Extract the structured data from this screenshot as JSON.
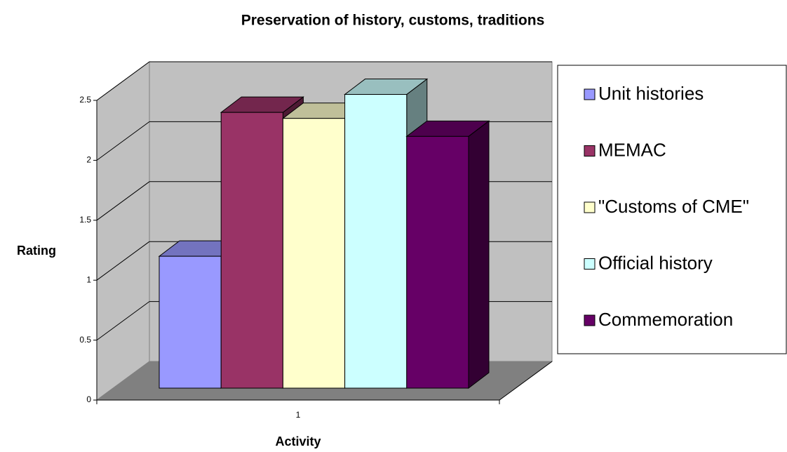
{
  "chart_data": {
    "type": "bar3d",
    "title": "Preservation of history, customs, traditions",
    "x_label": "Activity",
    "y_label": "Rating",
    "categories": [
      "1"
    ],
    "series": [
      {
        "name": "Unit histories",
        "color": "#9999ff",
        "values": [
          1.1
        ]
      },
      {
        "name": "MEMAC",
        "color": "#993366",
        "values": [
          2.3
        ]
      },
      {
        "name": "\"Customs of CME\"",
        "color": "#ffffcc",
        "values": [
          2.25
        ]
      },
      {
        "name": "Official history",
        "color": "#ccffff",
        "values": [
          2.45
        ]
      },
      {
        "name": "Commemoration",
        "color": "#660066",
        "values": [
          2.1
        ]
      }
    ],
    "ylim": [
      0,
      2.5
    ],
    "yticks": [
      0,
      0.5,
      1,
      1.5,
      2,
      2.5
    ],
    "grid": true,
    "legend": "right"
  }
}
